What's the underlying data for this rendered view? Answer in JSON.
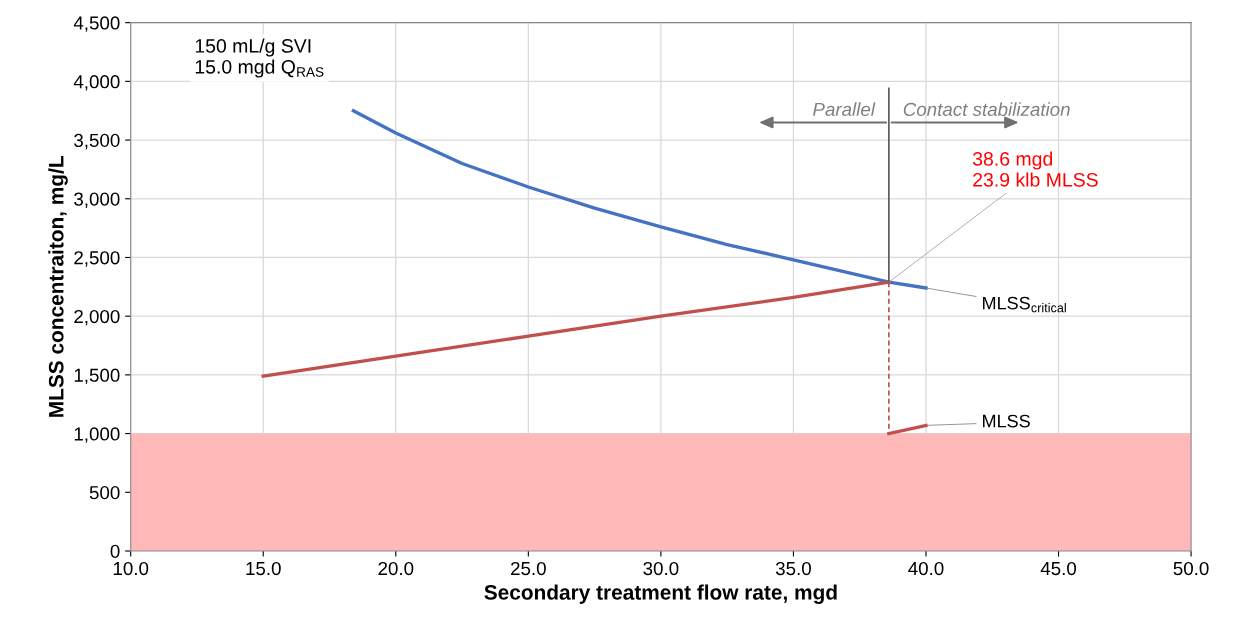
{
  "chart_data": {
    "type": "line",
    "xlabel": "Secondary treatment flow rate, mgd",
    "ylabel": "MLSS concentraiton, mg/L",
    "xlim": [
      10,
      50
    ],
    "xticks": [
      {
        "value": 10,
        "label": "10.0"
      },
      {
        "value": 15,
        "label": "15.0"
      },
      {
        "value": 20,
        "label": "20.0"
      },
      {
        "value": 25,
        "label": "25.0"
      },
      {
        "value": 30,
        "label": "30.0"
      },
      {
        "value": 35,
        "label": "35.0"
      },
      {
        "value": 40,
        "label": "40.0"
      },
      {
        "value": 45,
        "label": "45.0"
      },
      {
        "value": 50,
        "label": "50.0"
      }
    ],
    "ylim": [
      0,
      4500
    ],
    "yticks": [
      0,
      500,
      {
        "value": 1000,
        "label": "1,000"
      },
      {
        "value": 1500,
        "label": "1,500"
      },
      {
        "value": 2000,
        "label": "2,000"
      },
      {
        "value": 2500,
        "label": "2,500"
      },
      {
        "value": 3000,
        "label": "3,000"
      },
      {
        "value": 3500,
        "label": "3,500"
      },
      {
        "value": 4000,
        "label": "4,000"
      },
      {
        "value": 4500,
        "label": "4,500"
      }
    ],
    "grid": true,
    "series": [
      {
        "name": "MLSS$_{critical}$",
        "color": "#4472c4",
        "x": [
          18.4,
          20,
          22.5,
          25,
          27.5,
          30,
          32.5,
          35,
          38.6,
          40
        ],
        "values": [
          3750,
          3560,
          3300,
          3100,
          2920,
          2760,
          2610,
          2480,
          2290,
          2240
        ]
      },
      {
        "color": "#c0504d",
        "x": [
          15,
          20,
          25,
          30,
          35,
          38.6
        ],
        "values": [
          1490,
          1660,
          1830,
          2000,
          2160,
          2290
        ]
      },
      {
        "color": "#c0504d",
        "line_style": "dashed",
        "x": [
          38.6,
          38.6
        ],
        "values": [
          2290,
          1000
        ]
      },
      {
        "name": "MLSS",
        "color": "#c0504d",
        "x": [
          38.6,
          40
        ],
        "values": [
          1000,
          1070
        ]
      },
      {
        "color": "#595959",
        "x": [
          38.6,
          38.6
        ],
        "values": [
          2290,
          3940
        ]
      }
    ],
    "bands": [
      {
        "axis": "y",
        "from": 0,
        "to": 1000,
        "color": "#ffb9b9"
      }
    ],
    "annotations": [
      "150 mL/g SVI\n15.0 mgd Q$_{RAS}$",
      "Parallel",
      "Contact stabilization",
      {
        "text": "38.6 mgd\n23.9 klb MLSS",
        "x": 38.6,
        "y": 2290
      }
    ]
  }
}
